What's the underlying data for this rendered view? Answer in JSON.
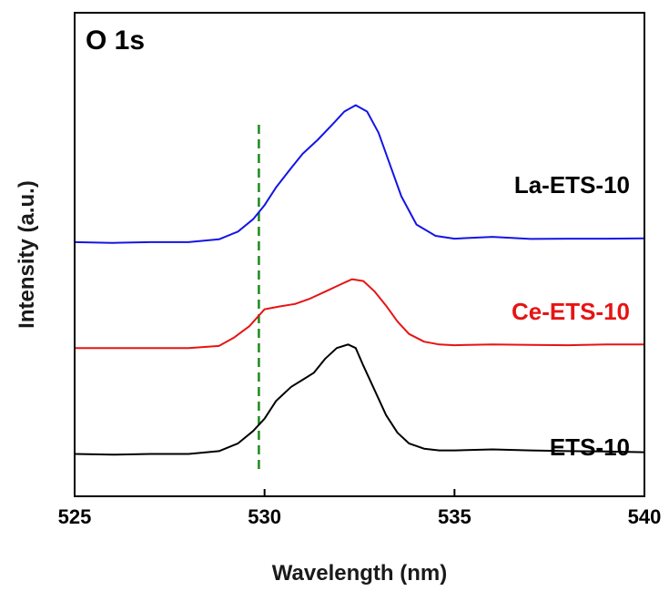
{
  "chart_data": {
    "type": "line",
    "title": "O 1s",
    "xlabel": "Wavelength (nm)",
    "ylabel": "Intensity (a.u.)",
    "xlim": [
      525,
      540
    ],
    "xticks": [
      "525",
      "530",
      "535",
      "540"
    ],
    "y_tick_labels": false,
    "reference_line": {
      "x": 529.85,
      "color": "#1e8a1e",
      "style": "dashed"
    },
    "series": [
      {
        "name": "La-ETS-10",
        "color": "#1414e6",
        "x": [
          525.0,
          526.0,
          527.0,
          528.0,
          528.8,
          529.3,
          529.7,
          530.0,
          530.3,
          530.7,
          531.0,
          531.4,
          531.8,
          532.1,
          532.4,
          532.7,
          533.0,
          533.3,
          533.6,
          534.0,
          534.5,
          535.0,
          536.0,
          537.0,
          538.0,
          539.0,
          540.0
        ],
        "y": [
          0.3,
          0.298,
          0.3,
          0.3,
          0.308,
          0.33,
          0.365,
          0.405,
          0.455,
          0.51,
          0.55,
          0.59,
          0.635,
          0.67,
          0.688,
          0.67,
          0.61,
          0.52,
          0.43,
          0.35,
          0.318,
          0.31,
          0.315,
          0.309,
          0.31,
          0.31,
          0.311
        ]
      },
      {
        "name": "Ce-ETS-10",
        "color": "#e61414",
        "x": [
          525.0,
          526.0,
          527.0,
          528.0,
          528.8,
          529.2,
          529.6,
          530.0,
          530.4,
          530.8,
          531.2,
          531.6,
          532.0,
          532.3,
          532.6,
          532.9,
          533.2,
          533.5,
          533.8,
          534.2,
          534.6,
          535.0,
          536.0,
          537.0,
          538.0,
          539.0,
          540.0
        ],
        "y": [
          0.0,
          0.0,
          0.0,
          0.0,
          0.006,
          0.03,
          0.062,
          0.11,
          0.118,
          0.125,
          0.14,
          0.16,
          0.18,
          0.195,
          0.19,
          0.16,
          0.12,
          0.075,
          0.04,
          0.018,
          0.01,
          0.008,
          0.01,
          0.009,
          0.008,
          0.01,
          0.01
        ]
      },
      {
        "name": "ETS-10",
        "color": "#000000",
        "x": [
          525.0,
          526.0,
          527.0,
          528.0,
          528.8,
          529.3,
          529.7,
          530.0,
          530.3,
          530.7,
          531.0,
          531.3,
          531.6,
          531.9,
          532.2,
          532.4,
          532.6,
          532.9,
          533.2,
          533.5,
          533.8,
          534.2,
          534.6,
          535.0,
          536.0,
          537.0,
          538.0,
          539.0,
          540.0
        ],
        "y": [
          -0.3,
          -0.302,
          -0.3,
          -0.3,
          -0.292,
          -0.27,
          -0.235,
          -0.2,
          -0.15,
          -0.11,
          -0.09,
          -0.07,
          -0.03,
          0.0,
          0.01,
          0.0,
          -0.05,
          -0.12,
          -0.19,
          -0.24,
          -0.27,
          -0.285,
          -0.29,
          -0.29,
          -0.287,
          -0.29,
          -0.292,
          -0.293,
          -0.295
        ]
      }
    ]
  }
}
